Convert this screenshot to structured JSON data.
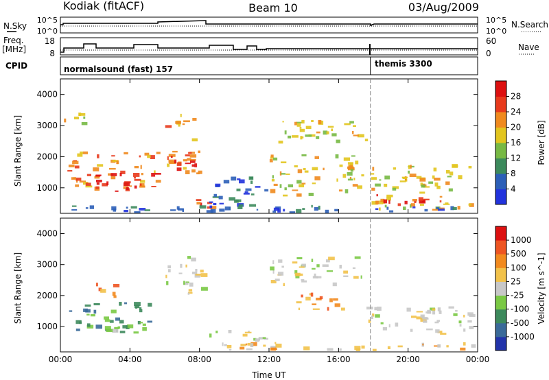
{
  "header": {
    "station": "Kodiak (fitACF)",
    "beam": "Beam 10",
    "date": "03/Aug/2009"
  },
  "strip_labels": {
    "nsky": "N.Sky",
    "nsearch": "N.Search",
    "freq_line1": "Freq.",
    "freq_line2": "[MHz]",
    "nave": "Nave",
    "cpid": "CPID"
  },
  "strip_ticks": {
    "nsky_left": [
      "10^5",
      "10^0"
    ],
    "nsky_right": [
      "10^5",
      "10^0"
    ],
    "freq_left": [
      "18",
      "8"
    ],
    "nave_right": [
      "60",
      "0"
    ]
  },
  "cpid_segments": [
    {
      "label": "normalsound (fast) 157",
      "start": "00:00",
      "end": "17:50"
    },
    {
      "label": "themis 3300",
      "start": "17:50",
      "end": "24:00"
    }
  ],
  "chart_data": [
    {
      "type": "heatmap",
      "title": "Power",
      "xlabel": "Time UT",
      "ylabel": "Slant Range [km]",
      "x_range_hours": [
        0,
        24
      ],
      "ylim": [
        180,
        4500
      ],
      "yticks": [
        "1000",
        "2000",
        "3000",
        "4000"
      ],
      "xticks": [
        "00:00",
        "04:00",
        "08:00",
        "12:00",
        "16:00",
        "20:00",
        "00:00"
      ],
      "colorbar": {
        "label": "Power [dB]",
        "ticks": [
          "4",
          "8",
          "12",
          "16",
          "20",
          "24",
          "28"
        ],
        "colors": [
          "#2233dd",
          "#2c5fb8",
          "#3c8a5c",
          "#77b944",
          "#e2c51e",
          "#f08a1e",
          "#e83a1c",
          "#dd1010"
        ]
      },
      "regions": [
        {
          "t": [
            0.1,
            1.6
          ],
          "r": [
            3000,
            3500
          ],
          "level": 4
        },
        {
          "t": [
            0.2,
            5.8
          ],
          "r": [
            900,
            2200
          ],
          "level": 5
        },
        {
          "t": [
            2.0,
            5.8
          ],
          "r": [
            800,
            1500
          ],
          "level": 7
        },
        {
          "t": [
            6.0,
            8.3
          ],
          "r": [
            1400,
            2600
          ],
          "level": 5
        },
        {
          "t": [
            6.3,
            8.0
          ],
          "r": [
            1500,
            2200
          ],
          "level": 7
        },
        {
          "t": [
            6.0,
            8.2
          ],
          "r": [
            2900,
            3400
          ],
          "level": 5
        },
        {
          "t": [
            7.8,
            9.0
          ],
          "r": [
            300,
            700
          ],
          "level": 6
        },
        {
          "t": [
            8.5,
            12.0
          ],
          "r": [
            300,
            1400
          ],
          "level": 1
        },
        {
          "t": [
            12.0,
            18.0
          ],
          "r": [
            2400,
            3200
          ],
          "level": 4
        },
        {
          "t": [
            12.0,
            17.5
          ],
          "r": [
            700,
            2100
          ],
          "level": 4
        },
        {
          "t": [
            17.8,
            24.0
          ],
          "r": [
            250,
            1800
          ],
          "level": 4
        },
        {
          "t": [
            18.0,
            22.0
          ],
          "r": [
            400,
            800
          ],
          "level": 7
        },
        {
          "t": [
            0.0,
            24.0
          ],
          "r": [
            180,
            450
          ],
          "level": 1
        }
      ]
    },
    {
      "type": "heatmap",
      "title": "Velocity",
      "xlabel": "Time UT",
      "ylabel": "Slant Range [km]",
      "x_range_hours": [
        0,
        24
      ],
      "ylim": [
        180,
        4500
      ],
      "yticks": [
        "1000",
        "2000",
        "3000",
        "4000"
      ],
      "xticks": [
        "00:00",
        "04:00",
        "08:00",
        "12:00",
        "16:00",
        "20:00",
        "00:00"
      ],
      "colorbar": {
        "label": "Velocity [m s^-1]",
        "ticks": [
          "1000",
          "500",
          "100",
          "25",
          "-25",
          "-100",
          "-500",
          "-1000"
        ],
        "colors": [
          "#2233aa",
          "#3a6a99",
          "#3d8a5c",
          "#7ac944",
          "#c8c8c8",
          "#f2c24a",
          "#f28a1e",
          "#ee5522",
          "#dd1010"
        ]
      },
      "regions": [
        {
          "t": [
            0.5,
            5.5
          ],
          "r": [
            800,
            1800
          ],
          "level": 2
        },
        {
          "t": [
            2.5,
            5.5
          ],
          "r": [
            700,
            1100
          ],
          "level": 3
        },
        {
          "t": [
            2.0,
            3.5
          ],
          "r": [
            1900,
            2500
          ],
          "level": 6
        },
        {
          "t": [
            6.0,
            8.5
          ],
          "r": [
            2000,
            3300
          ],
          "level": 4
        },
        {
          "t": [
            8.0,
            11.0
          ],
          "r": [
            600,
            900
          ],
          "level": 4
        },
        {
          "t": [
            10.5,
            12.0
          ],
          "r": [
            500,
            700
          ],
          "level": 3
        },
        {
          "t": [
            12.0,
            17.5
          ],
          "r": [
            2300,
            3300
          ],
          "level": 4
        },
        {
          "t": [
            13.5,
            16.5
          ],
          "r": [
            1400,
            2100
          ],
          "level": 6
        },
        {
          "t": [
            17.5,
            24.0
          ],
          "r": [
            700,
            1700
          ],
          "level": 4
        },
        {
          "t": [
            8.0,
            24.0
          ],
          "r": [
            200,
            500
          ],
          "level": 5
        }
      ]
    }
  ]
}
